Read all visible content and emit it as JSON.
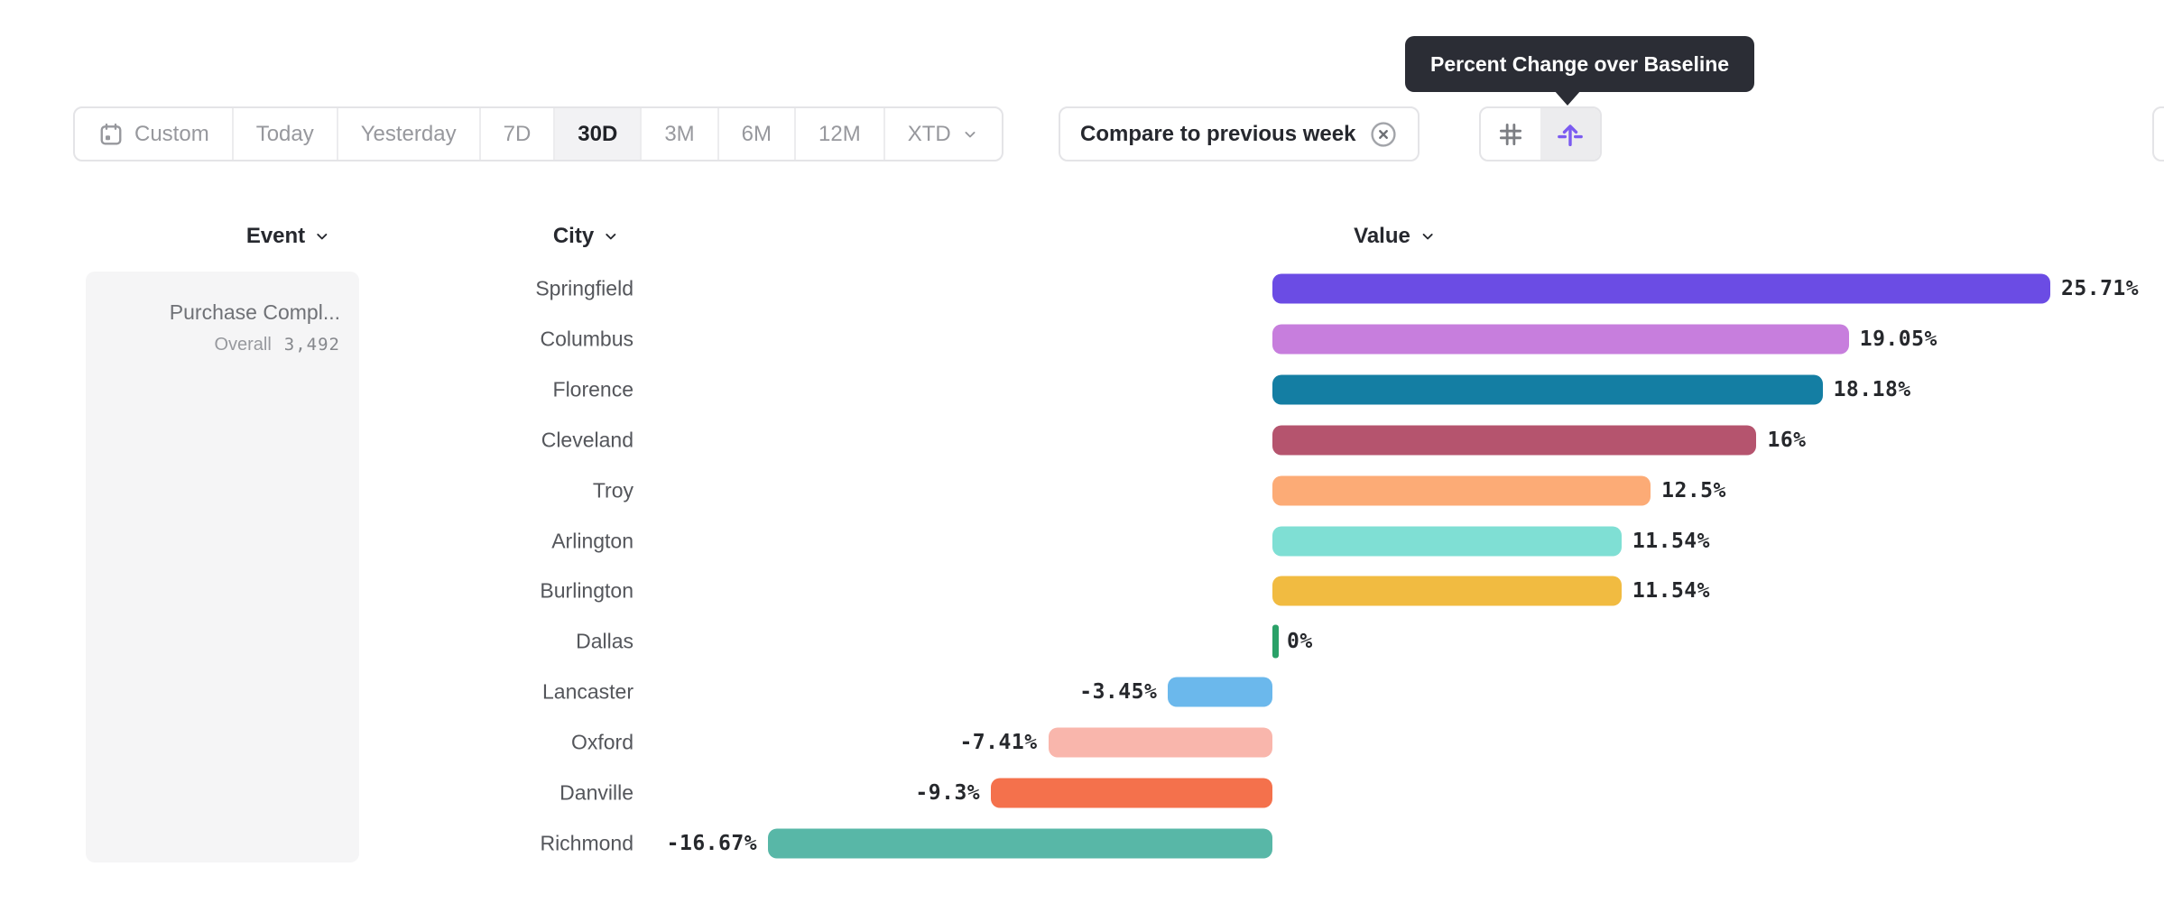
{
  "tooltip": {
    "text": "Percent Change over Baseline"
  },
  "toolbar": {
    "date_ranges": [
      {
        "label": "Custom",
        "icon": "calendar-icon",
        "selected": false
      },
      {
        "label": "Today",
        "selected": false
      },
      {
        "label": "Yesterday",
        "selected": false
      },
      {
        "label": "7D",
        "selected": false
      },
      {
        "label": "30D",
        "selected": true
      },
      {
        "label": "3M",
        "selected": false
      },
      {
        "label": "6M",
        "selected": false
      },
      {
        "label": "12M",
        "selected": false
      },
      {
        "label": "XTD",
        "selected": false,
        "chevron": true
      }
    ],
    "compare_filter": {
      "label": "Compare to previous week",
      "close_icon": "circle-x-icon"
    },
    "view_toggle": {
      "options": [
        {
          "icon": "number-sign-icon",
          "selected": false
        },
        {
          "icon": "baseline-arrow-icon",
          "selected": true
        }
      ]
    }
  },
  "columns": [
    {
      "label": "Event"
    },
    {
      "label": "City"
    },
    {
      "label": "Value"
    }
  ],
  "event_panel": {
    "name": "Purchase Compl...",
    "overall_label": "Overall",
    "overall_value": "3,492"
  },
  "chart_data": {
    "type": "bar",
    "orientation": "horizontal",
    "title": "Percent Change over Baseline",
    "value_unit": "percent",
    "baseline": 0,
    "grid": false,
    "xlim": [
      -16.67,
      25.71
    ],
    "categories": [
      "Springfield",
      "Columbus",
      "Florence",
      "Cleveland",
      "Troy",
      "Arlington",
      "Burlington",
      "Dallas",
      "Lancaster",
      "Oxford",
      "Danville",
      "Richmond"
    ],
    "values": [
      25.71,
      19.05,
      18.18,
      16,
      12.5,
      11.54,
      11.54,
      0,
      -3.45,
      -7.41,
      -9.3,
      -16.67
    ],
    "value_labels": [
      "25.71%",
      "19.05%",
      "18.18%",
      "16%",
      "12.5%",
      "11.54%",
      "11.54%",
      "0%",
      "-3.45%",
      "-7.41%",
      "-9.3%",
      "-16.67%"
    ],
    "bar_colors": [
      "#6b4ce4",
      "#c77edd",
      "#147ea3",
      "#b5546e",
      "#fcab76",
      "#7fdfd4",
      "#f1bb41",
      "#2aa168",
      "#6bb8ec",
      "#f9b6ac",
      "#f4714c",
      "#58b7a7"
    ]
  },
  "colors": {
    "accent_purple": "#7b5bf0",
    "tooltip_bg": "#2b2d35",
    "selected_segment_bg": "#f2f2f4",
    "panel_bg": "#f5f5f6",
    "border": "#e4e4e7",
    "muted_text": "#97989d",
    "dark_text": "#26282e",
    "city_text": "#54565b"
  }
}
